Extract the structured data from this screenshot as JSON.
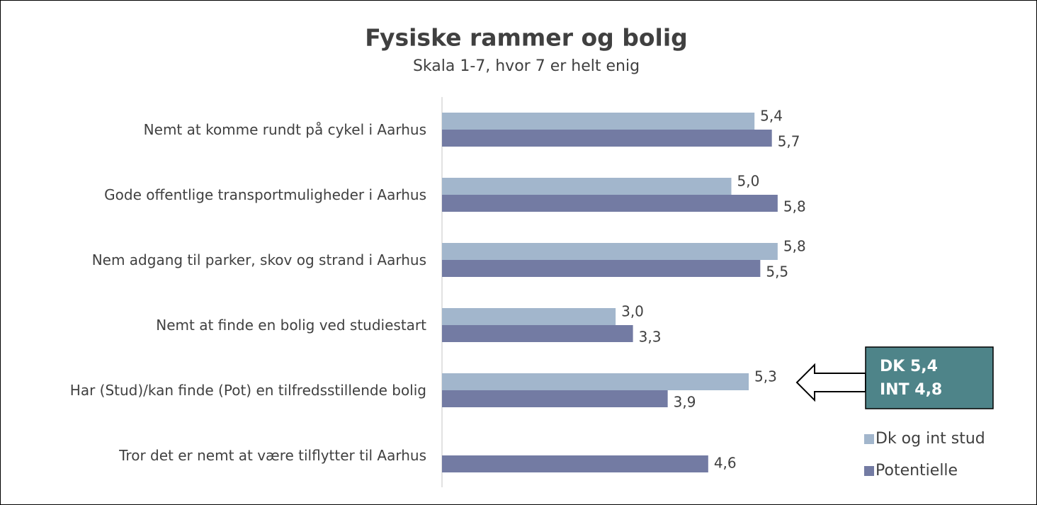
{
  "chart_data": {
    "type": "hbar",
    "title": "Fysiske rammer og bolig",
    "subtitle": "Skala 1-7, hvor 7 er helt enig",
    "categories": [
      "Nemt at komme rundt på cykel i Aarhus",
      "Gode offentlige transportmuligheder i Aarhus",
      "Nem adgang til parker, skov og strand i Aarhus",
      "Nemt at finde en bolig ved studiestart",
      "Har (Stud)/kan finde (Pot) en tilfredsstillende bolig",
      "Tror det er nemt at være tilflytter til Aarhus"
    ],
    "series": [
      {
        "name": "Dk og int stud",
        "color": "#a2b6cc",
        "values": [
          5.4,
          5.0,
          5.8,
          3.0,
          5.3,
          null
        ],
        "value_labels": [
          "5,4",
          "5,0",
          "5,8",
          "3,0",
          "5,3",
          null
        ]
      },
      {
        "name": "Potentielle",
        "color": "#737ba3",
        "values": [
          5.7,
          5.8,
          5.5,
          3.3,
          3.9,
          4.6
        ],
        "value_labels": [
          "5,7",
          "5,8",
          "5,5",
          "3,3",
          "3,9",
          "4,6"
        ]
      }
    ],
    "xlim": [
      0,
      7
    ],
    "legend": "right",
    "annotations": [
      "DK 5,4",
      "INT 4,8"
    ]
  }
}
